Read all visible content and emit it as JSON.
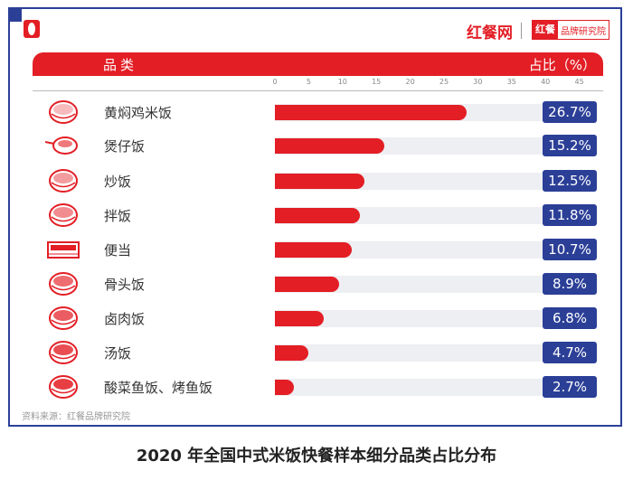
{
  "brand": {
    "name": "红餐网",
    "badge_red": "红餐",
    "badge_text": "品牌研究院"
  },
  "colors": {
    "accent": "#e31e25",
    "frame": "#2b3f97",
    "track": "#eeeff2"
  },
  "chart_data": {
    "type": "bar",
    "orientation": "horizontal",
    "title": "2020 年全国中式米饭快餐样本细分品类占比分布",
    "xlabel": "占比（%）",
    "ylabel": "品类",
    "xlim": [
      0,
      45
    ],
    "ticks": [
      "0",
      "5",
      "10",
      "15",
      "20",
      "25",
      "30",
      "35",
      "40",
      "45"
    ],
    "categories": [
      "黄焖鸡米饭",
      "煲仔饭",
      "炒饭",
      "拌饭",
      "便当",
      "骨头饭",
      "卤肉饭",
      "汤饭",
      "酸菜鱼饭、烤鱼饭"
    ],
    "values": [
      26.7,
      15.2,
      12.5,
      11.8,
      10.7,
      8.9,
      6.8,
      4.7,
      2.7
    ],
    "labels": [
      "26.7%",
      "15.2%",
      "12.5%",
      "11.8%",
      "10.7%",
      "8.9%",
      "6.8%",
      "4.7%",
      "2.7%"
    ],
    "icons": [
      "bowl-icon",
      "claypot-icon",
      "fried-rice-icon",
      "mixed-rice-bowl-icon",
      "bento-box-icon",
      "bone-soup-bowl-icon",
      "braised-pork-bowl-icon",
      "soup-bowl-icon",
      "fish-bowl-icon"
    ]
  },
  "header": {
    "category": "品类",
    "share": "占比（%）"
  },
  "source": "资料来源：红餐品牌研究院",
  "caption": "2020 年全国中式米饭快餐样本细分品类占比分布"
}
